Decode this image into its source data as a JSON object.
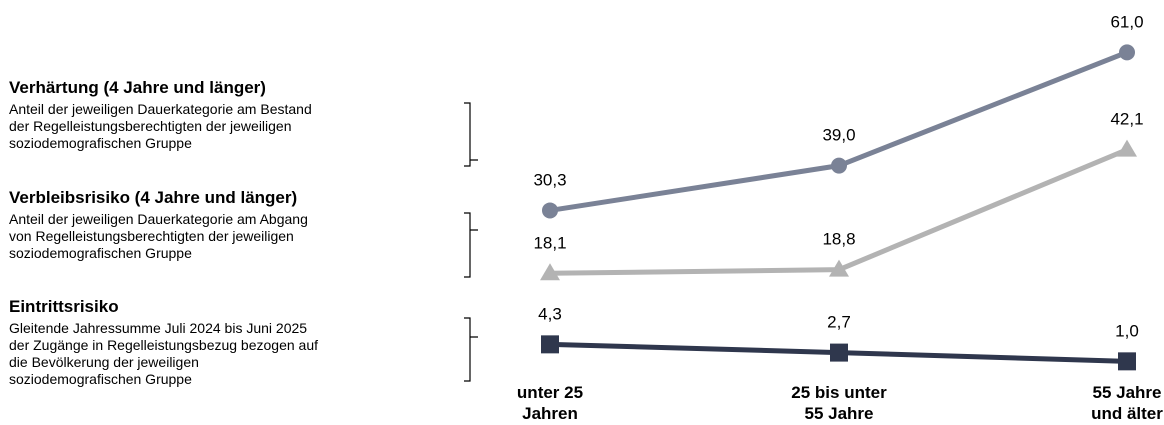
{
  "chart_data": {
    "type": "line",
    "categories": [
      [
        "unter 25",
        "Jahren"
      ],
      [
        "25 bis unter",
        "55 Jahre"
      ],
      [
        "55 Jahre",
        "und älter"
      ]
    ],
    "series": [
      {
        "name": "Verhärtung (4 Jahre und länger)",
        "description": [
          "Anteil der jeweiligen Dauerkategorie am Bestand",
          "der Regelleistungsberechtigten der jeweiligen",
          "soziodemografischen Gruppe"
        ],
        "values": [
          30.3,
          39.0,
          61.0
        ],
        "labels": [
          "30,3",
          "39,0",
          "61,0"
        ],
        "color": "#7a8296",
        "marker": "circle"
      },
      {
        "name": "Verbleibsrisiko (4 Jahre und länger)",
        "description": [
          "Anteil der jeweiligen Dauerkategorie am Abgang",
          "von Regelleistungsberechtigten der jeweiligen",
          "soziodemografischen Gruppe"
        ],
        "values": [
          18.1,
          18.8,
          42.1
        ],
        "labels": [
          "18,1",
          "18,8",
          "42,1"
        ],
        "color": "#b3b3b3",
        "marker": "triangle"
      },
      {
        "name": "Eintrittsrisiko",
        "description": [
          "Gleitende Jahressumme Juli 2024 bis Juni 2025",
          "der Zugänge in Regelleistungsbezug bezogen auf",
          "die Bevölkerung der jeweiligen",
          "soziodemografischen Gruppe"
        ],
        "values": [
          4.3,
          2.7,
          1.0
        ],
        "labels": [
          "4,3",
          "2,7",
          "1,0"
        ],
        "color": "#2f374d",
        "marker": "square"
      }
    ]
  }
}
